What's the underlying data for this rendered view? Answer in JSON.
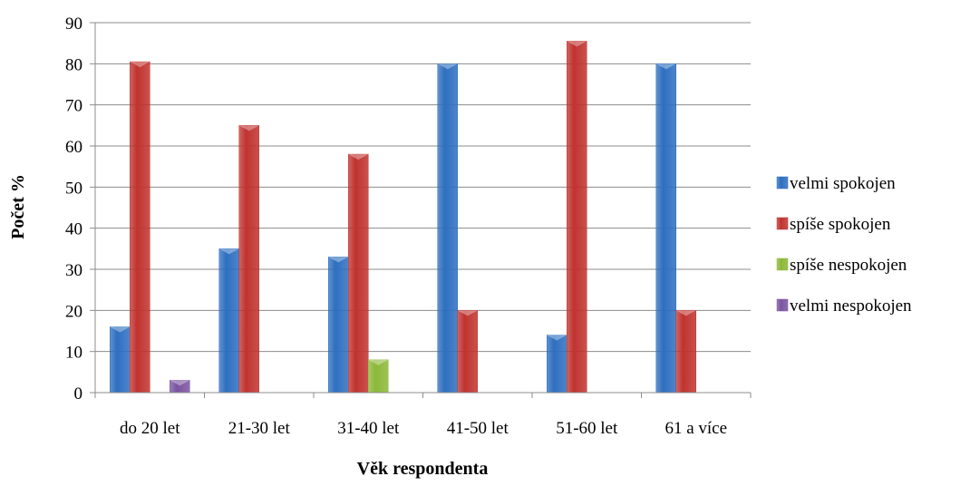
{
  "chart_data": {
    "type": "bar",
    "xlabel": "Věk respondenta",
    "ylabel": "Počet %",
    "ylim": [
      0,
      90
    ],
    "ytick_step": 10,
    "grid": true,
    "legend_position": "right",
    "categories": [
      "do 20 let",
      "21-30 let",
      "31-40 let",
      "41-50 let",
      "51-60 let",
      "61 a více"
    ],
    "series": [
      {
        "name": "velmi spokojen",
        "color": "#2e6fc0",
        "values": [
          16,
          35,
          33,
          80,
          14,
          80
        ]
      },
      {
        "name": "spíše spokojen",
        "color": "#c0332f",
        "values": [
          80.5,
          65,
          58,
          20,
          85.5,
          20
        ]
      },
      {
        "name": "spíše nespokojen",
        "color": "#8cb838",
        "values": [
          0,
          0,
          8,
          0,
          0,
          0
        ]
      },
      {
        "name": "velmi nespokojen",
        "color": "#7a54a0",
        "values": [
          3,
          0,
          0,
          0,
          0,
          0
        ]
      }
    ]
  }
}
